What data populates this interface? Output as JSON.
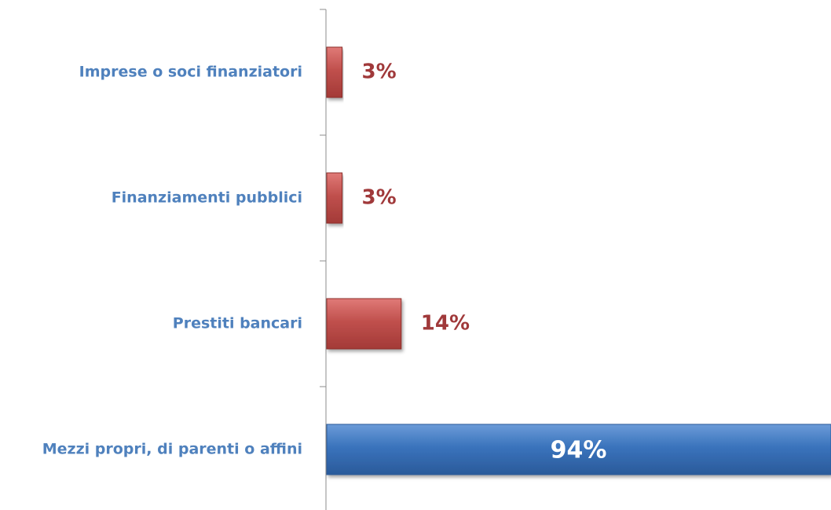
{
  "chart_data": {
    "type": "bar",
    "orientation": "horizontal",
    "categories": [
      "Imprese o soci finanziatori",
      "Finanziamenti pubblici",
      "Prestiti bancari",
      "Mezzi propri, di parenti o affini"
    ],
    "values": [
      3,
      3,
      14,
      94
    ],
    "value_labels": [
      "3%",
      "3%",
      "14%",
      "94%"
    ],
    "unit": "%",
    "xlim": [
      0,
      94
    ],
    "grid": false,
    "legend": "none",
    "colors": {
      "default_bar": "#C0504D",
      "highlight_bar": "#3A73BC",
      "category_text": "#4F81BD",
      "value_text": "#A0393A",
      "value_text_inside": "#FFFFFF",
      "axis": "#8C8C8C"
    },
    "highlight_index": 3
  }
}
